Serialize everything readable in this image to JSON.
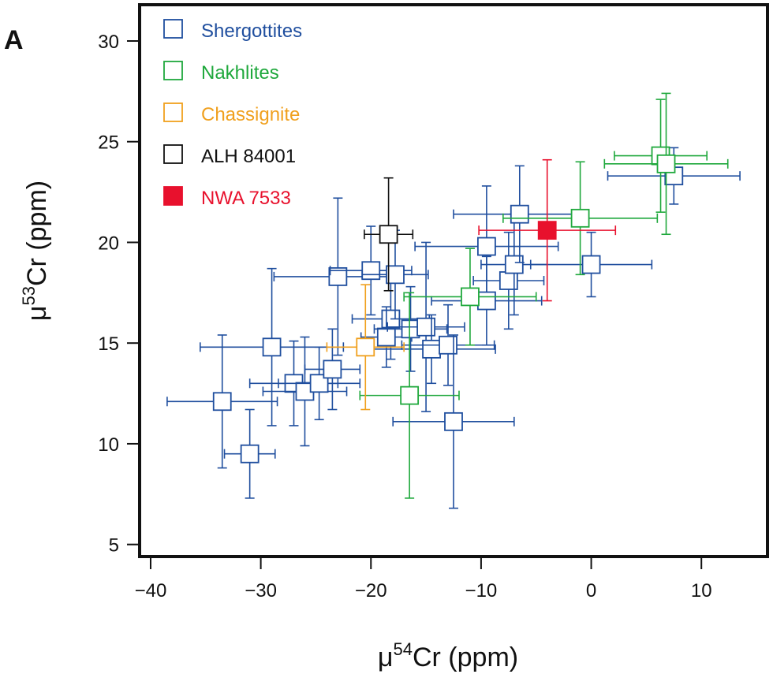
{
  "panel_label": "A",
  "chart_data": {
    "type": "scatter",
    "title": "",
    "xlabel": {
      "prefix": "μ",
      "superscript": "54",
      "suffix": "Cr (ppm)"
    },
    "ylabel": {
      "prefix": "μ",
      "superscript": "53",
      "suffix": "Cr (ppm)"
    },
    "xlim": [
      -41,
      16
    ],
    "ylim": [
      4.4,
      31.8
    ],
    "xticks": [
      -40,
      -30,
      -20,
      -10,
      0,
      10
    ],
    "xtick_labels": [
      "−40",
      "−30",
      "−20",
      "−10",
      "0",
      "10"
    ],
    "yticks": [
      5,
      10,
      15,
      20,
      25,
      30
    ],
    "ytick_labels": [
      "5",
      "10",
      "15",
      "20",
      "25",
      "30"
    ],
    "grid": false,
    "legend_position": "top-left",
    "series": [
      {
        "name": "Shergottites",
        "color": "#1f4e9e",
        "filled": false,
        "points": [
          {
            "x": -33.5,
            "y": 12.1,
            "xerr": [
              5.0,
              5.0
            ],
            "yerr": [
              3.3,
              3.3
            ]
          },
          {
            "x": -31.0,
            "y": 9.5,
            "xerr": [
              2.3,
              2.3
            ],
            "yerr": [
              2.2,
              2.2
            ]
          },
          {
            "x": -29.0,
            "y": 14.8,
            "xerr": [
              6.5,
              6.5
            ],
            "yerr": [
              3.9,
              3.9
            ]
          },
          {
            "x": -27.0,
            "y": 13.0,
            "xerr": [
              4.0,
              4.0
            ],
            "yerr": [
              2.1,
              2.1
            ]
          },
          {
            "x": -26.0,
            "y": 12.6,
            "xerr": [
              3.8,
              3.8
            ],
            "yerr": [
              2.7,
              2.7
            ]
          },
          {
            "x": -24.7,
            "y": 13.0,
            "xerr": [
              3.7,
              3.7
            ],
            "yerr": [
              1.8,
              1.8
            ]
          },
          {
            "x": -23.5,
            "y": 13.7,
            "xerr": [
              2.5,
              2.5
            ],
            "yerr": [
              2.0,
              2.0
            ]
          },
          {
            "x": -23.0,
            "y": 18.3,
            "xerr": [
              5.8,
              5.8
            ],
            "yerr": [
              3.9,
              3.9
            ]
          },
          {
            "x": -20.0,
            "y": 18.6,
            "xerr": [
              3.7,
              3.7
            ],
            "yerr": [
              2.2,
              2.2
            ]
          },
          {
            "x": -18.2,
            "y": 16.2,
            "xerr": [
              3.5,
              3.5
            ],
            "yerr": [
              2.0,
              2.0
            ]
          },
          {
            "x": -18.6,
            "y": 15.3,
            "xerr": [
              2.3,
              2.3
            ],
            "yerr": [
              1.5,
              1.5
            ]
          },
          {
            "x": -17.8,
            "y": 18.4,
            "xerr": [
              3.0,
              3.0
            ],
            "yerr": [
              2.2,
              2.2
            ]
          },
          {
            "x": -16.4,
            "y": 15.7,
            "xerr": [
              3.3,
              3.3
            ],
            "yerr": [
              2.1,
              2.1
            ]
          },
          {
            "x": -15.0,
            "y": 15.8,
            "xerr": [
              3.5,
              3.5
            ],
            "yerr": [
              4.2,
              4.2
            ]
          },
          {
            "x": -14.5,
            "y": 14.7,
            "xerr": [
              5.8,
              5.8
            ],
            "yerr": [
              1.7,
              1.7
            ]
          },
          {
            "x": -13.0,
            "y": 14.9,
            "xerr": [
              4.2,
              4.2
            ],
            "yerr": [
              2.0,
              2.0
            ]
          },
          {
            "x": -12.5,
            "y": 11.1,
            "xerr": [
              5.5,
              5.5
            ],
            "yerr": [
              4.3,
              4.3
            ]
          },
          {
            "x": -9.5,
            "y": 19.8,
            "xerr": [
              6.5,
              6.5
            ],
            "yerr": [
              3.0,
              3.0
            ]
          },
          {
            "x": -9.5,
            "y": 17.1,
            "xerr": [
              5.0,
              5.0
            ],
            "yerr": [
              2.2,
              2.2
            ]
          },
          {
            "x": -7.5,
            "y": 18.1,
            "xerr": [
              3.2,
              3.2
            ],
            "yerr": [
              2.4,
              2.4
            ]
          },
          {
            "x": -7.0,
            "y": 18.9,
            "xerr": [
              3.0,
              3.0
            ],
            "yerr": [
              2.5,
              2.5
            ]
          },
          {
            "x": -6.5,
            "y": 21.4,
            "xerr": [
              6.0,
              6.0
            ],
            "yerr": [
              2.4,
              2.4
            ]
          },
          {
            "x": 0.0,
            "y": 18.9,
            "xerr": [
              5.5,
              5.5
            ],
            "yerr": [
              1.6,
              1.6
            ]
          },
          {
            "x": 7.5,
            "y": 23.3,
            "xerr": [
              6.0,
              6.0
            ],
            "yerr": [
              1.4,
              1.4
            ]
          }
        ]
      },
      {
        "name": "Nakhlites",
        "color": "#1fa83c",
        "filled": false,
        "points": [
          {
            "x": -16.5,
            "y": 12.4,
            "xerr": [
              4.5,
              4.5
            ],
            "yerr": [
              5.1,
              5.1
            ]
          },
          {
            "x": -11.0,
            "y": 17.3,
            "xerr": [
              6.0,
              6.0
            ],
            "yerr": [
              2.4,
              2.4
            ]
          },
          {
            "x": -1.0,
            "y": 21.2,
            "xerr": [
              7.0,
              7.0
            ],
            "yerr": [
              2.8,
              2.8
            ]
          },
          {
            "x": 6.3,
            "y": 24.3,
            "xerr": [
              4.2,
              4.2
            ],
            "yerr": [
              2.8,
              2.8
            ]
          },
          {
            "x": 6.8,
            "y": 23.9,
            "xerr": [
              5.6,
              5.6
            ],
            "yerr": [
              3.5,
              3.5
            ]
          }
        ]
      },
      {
        "name": "Chassignite",
        "color": "#f0a01e",
        "filled": false,
        "points": [
          {
            "x": -20.5,
            "y": 14.8,
            "xerr": [
              3.5,
              3.5
            ],
            "yerr": [
              3.1,
              3.1
            ]
          }
        ]
      },
      {
        "name": "ALH 84001",
        "color": "#111111",
        "filled": false,
        "points": [
          {
            "x": -18.4,
            "y": 20.4,
            "xerr": [
              2.2,
              2.2
            ],
            "yerr": [
              2.8,
              2.8
            ]
          }
        ]
      },
      {
        "name": "NWA 7533",
        "color": "#e8112d",
        "filled": true,
        "points": [
          {
            "x": -4.0,
            "y": 20.6,
            "xerr": [
              6.2,
              6.2
            ],
            "yerr": [
              3.5,
              3.5
            ]
          }
        ]
      }
    ]
  }
}
